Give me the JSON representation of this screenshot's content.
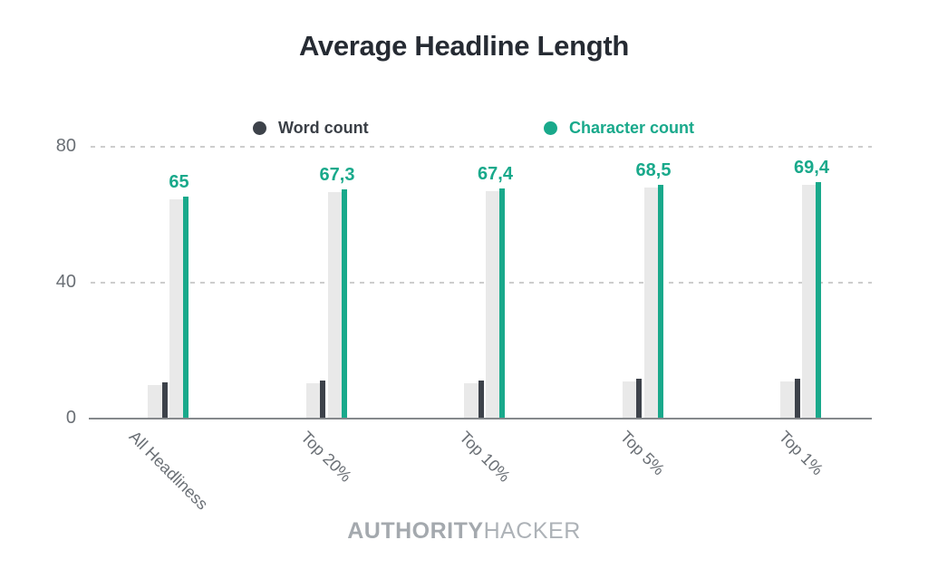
{
  "title": "Average Headline Length",
  "legend": {
    "word_label": "Word count",
    "char_label": "Character count"
  },
  "footer": {
    "brand_bold": "AUTHORITY",
    "brand_light": "HACKER"
  },
  "colors": {
    "word": "#3d424a",
    "char": "#19a98b",
    "track": "#e9e9e9",
    "grid": "#cdcdcd",
    "axis": "#85898c",
    "title_text": "#262b33",
    "tick_text": "#6a6f75",
    "brand_text": "#a8adb2"
  },
  "chart_data": {
    "type": "bar",
    "title": "Average Headline Length",
    "categories": [
      "All Headliness",
      "Top 20%",
      "Top 10%",
      "Top 5%",
      "Top 1%"
    ],
    "series": [
      {
        "name": "Word count",
        "color": "#3d424a",
        "values": [
          10.5,
          11,
          11,
          11.5,
          11.5
        ],
        "labels": [
          "",
          "",
          "",
          "",
          ""
        ]
      },
      {
        "name": "Character count",
        "color": "#19a98b",
        "values": [
          65,
          67.3,
          67.4,
          68.5,
          69.4
        ],
        "labels": [
          "65",
          "67,3",
          "67,4",
          "68,5",
          "69,4"
        ]
      }
    ],
    "xlabel": "",
    "ylabel": "",
    "yticks": [
      0,
      40,
      80
    ],
    "ylim": [
      0,
      80
    ],
    "grid": "horizontal-dashed",
    "legend_position": "top",
    "bar_style": "narrow colored bar over wide light-gray track, value labels above character bars"
  }
}
